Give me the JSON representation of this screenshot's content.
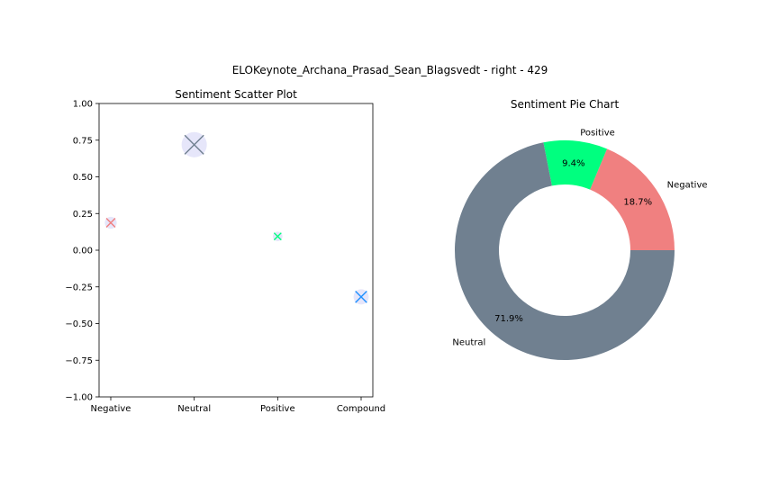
{
  "figure": {
    "suptitle": "ELOKeynote_Archana_Prasad_Sean_Blagsvedt - right - 429"
  },
  "chart_data": [
    {
      "type": "scatter",
      "title": "Sentiment Scatter Plot",
      "xlabel": "",
      "ylabel": "",
      "categories": [
        "Negative",
        "Neutral",
        "Positive",
        "Compound"
      ],
      "values": [
        0.187,
        0.719,
        0.094,
        -0.3182
      ],
      "marker": "x",
      "marker_colors": [
        "#f08080",
        "#708090",
        "#00ff7f",
        "#1e90ff"
      ],
      "halo_color": "#e6e6fa",
      "ylim": [
        -1.0,
        1.0
      ],
      "yticks": [
        "1.00",
        "0.75",
        "0.50",
        "0.25",
        "0.00",
        "−0.25",
        "−0.50",
        "−0.75",
        "−1.00"
      ],
      "grid": false
    },
    {
      "type": "pie",
      "style": "donut",
      "title": "Sentiment Pie Chart",
      "labels": [
        "Negative",
        "Positive",
        "Neutral"
      ],
      "values": [
        18.7,
        9.4,
        71.9
      ],
      "pct_labels": [
        "18.7%",
        "9.4%",
        "71.9%"
      ],
      "colors": [
        "#f08080",
        "#00ff7f",
        "#708090"
      ],
      "start_angle_deg": 0,
      "direction": "counterclockwise"
    }
  ]
}
